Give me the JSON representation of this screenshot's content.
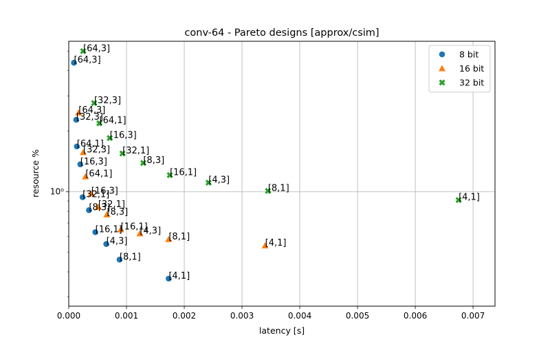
{
  "chart_data": {
    "type": "scatter",
    "title": "conv-64 - Pareto designs [approx/csim]",
    "xlabel": "latency [s]",
    "ylabel": "resource %",
    "xscale": "linear",
    "yscale": "log",
    "xlim": [
      0,
      0.00738
    ],
    "ylim": [
      0.27,
      5.6
    ],
    "xticks": [
      0,
      0.001,
      0.002,
      0.003,
      0.004,
      0.005,
      0.006,
      0.007
    ],
    "xtick_labels": [
      "0.000",
      "0.001",
      "0.002",
      "0.003",
      "0.004",
      "0.005",
      "0.006",
      "0.007"
    ],
    "yticks": [
      1
    ],
    "ytick_labels": [
      "10⁰"
    ],
    "grid": true,
    "legend_position": "top-right",
    "series": [
      {
        "name": "8 bit",
        "marker": "circle",
        "color": "#1f77b4",
        "points": [
          {
            "x": 9e-05,
            "y": 4.38,
            "label": "[64,3]"
          },
          {
            "x": 0.00013,
            "y": 2.28,
            "label": "[32,3]"
          },
          {
            "x": 0.00014,
            "y": 1.68,
            "label": "[64,1]"
          },
          {
            "x": 0.0002,
            "y": 1.37,
            "label": "[16,3]"
          },
          {
            "x": 0.00024,
            "y": 0.94,
            "label": "[32,1]"
          },
          {
            "x": 0.00035,
            "y": 0.81,
            "label": "[8,3]"
          },
          {
            "x": 0.00046,
            "y": 0.63,
            "label": "[16,1]"
          },
          {
            "x": 0.00065,
            "y": 0.55,
            "label": "[4,3]"
          },
          {
            "x": 0.00088,
            "y": 0.46,
            "label": "[8,1]"
          },
          {
            "x": 0.00173,
            "y": 0.37,
            "label": "[4,1]"
          }
        ]
      },
      {
        "name": "16 bit",
        "marker": "triangle",
        "color": "#ff7f0e",
        "points": [
          {
            "x": 0.00017,
            "y": 2.47,
            "label": "[64,3]"
          },
          {
            "x": 0.00025,
            "y": 1.57,
            "label": "[32,3]"
          },
          {
            "x": 0.00029,
            "y": 1.19,
            "label": "[64,1]"
          },
          {
            "x": 0.00039,
            "y": 0.98,
            "label": "[16,3]"
          },
          {
            "x": 0.00051,
            "y": 0.84,
            "label": "[32,1]"
          },
          {
            "x": 0.00066,
            "y": 0.77,
            "label": "[8,3]"
          },
          {
            "x": 0.0009,
            "y": 0.65,
            "label": "[16,1]"
          },
          {
            "x": 0.00123,
            "y": 0.62,
            "label": "[4,3]"
          },
          {
            "x": 0.00173,
            "y": 0.58,
            "label": "[8,1]"
          },
          {
            "x": 0.0034,
            "y": 0.54,
            "label": "[4,1]"
          }
        ]
      },
      {
        "name": "32 bit",
        "marker": "x",
        "color": "#2ca02c",
        "points": [
          {
            "x": 0.00025,
            "y": 5.0,
            "label": "[64,3]"
          },
          {
            "x": 0.00044,
            "y": 2.76,
            "label": "[32,3]"
          },
          {
            "x": 0.00053,
            "y": 2.19,
            "label": "[64,1]"
          },
          {
            "x": 0.00071,
            "y": 1.85,
            "label": "[16,3]"
          },
          {
            "x": 0.00093,
            "y": 1.55,
            "label": "[32,1]"
          },
          {
            "x": 0.00129,
            "y": 1.39,
            "label": "[8,3]"
          },
          {
            "x": 0.00175,
            "y": 1.21,
            "label": "[16,1]"
          },
          {
            "x": 0.00242,
            "y": 1.11,
            "label": "[4,3]"
          },
          {
            "x": 0.00345,
            "y": 1.01,
            "label": "[8,1]"
          },
          {
            "x": 0.00675,
            "y": 0.91,
            "label": "[4,1]"
          }
        ]
      }
    ]
  }
}
